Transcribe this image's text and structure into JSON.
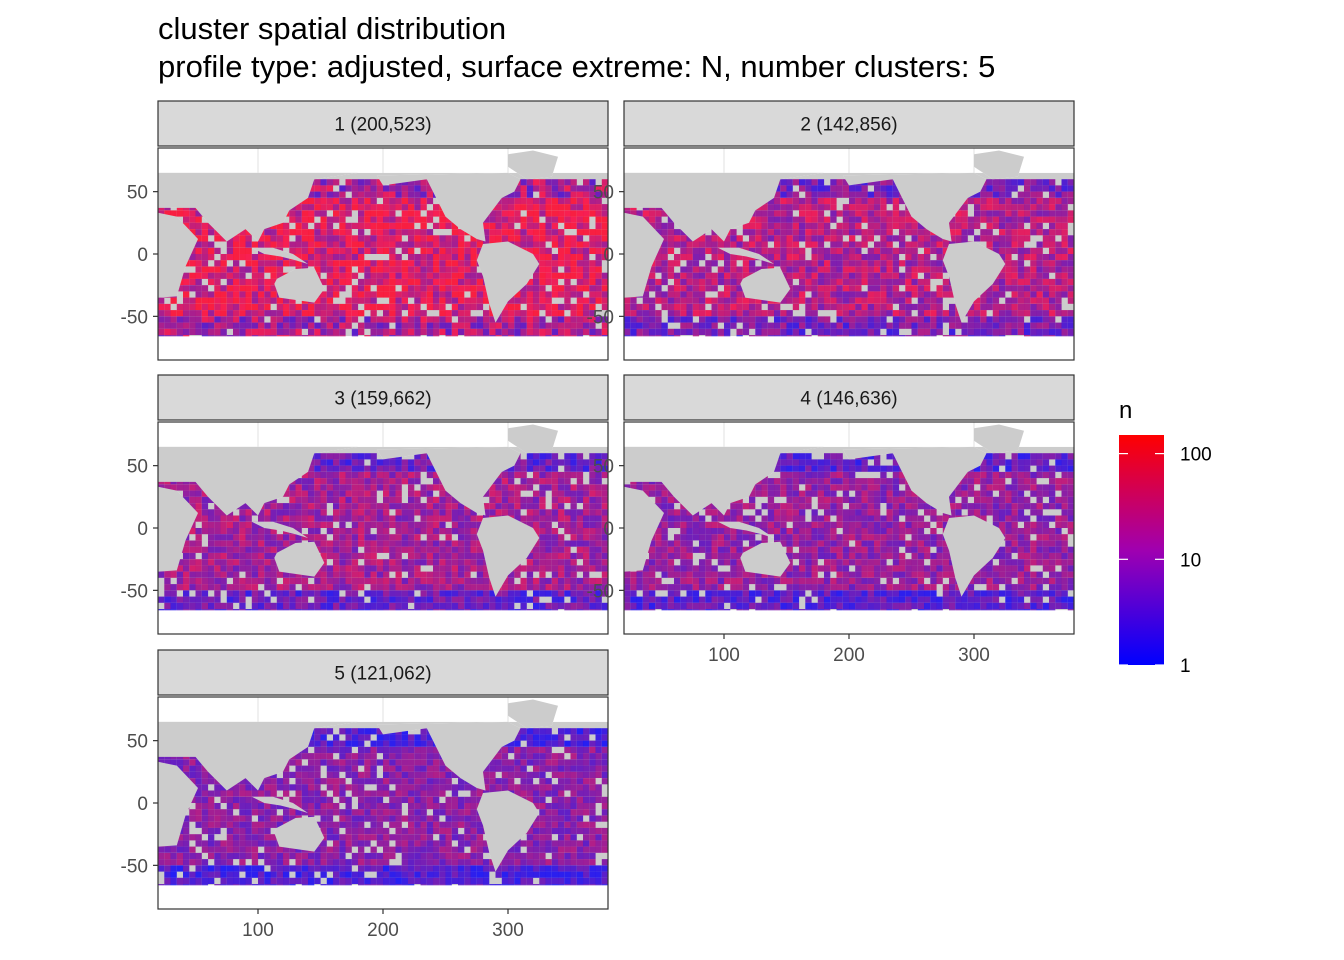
{
  "title": "cluster spatial distribution",
  "subtitle": "profile type: adjusted, surface extreme: N, number clusters: 5",
  "chart_data": {
    "type": "heatmap",
    "facet_variable": "cluster",
    "facets": [
      {
        "label": "1 (200,523)",
        "cluster": 1,
        "count": 200523,
        "intensity": 0.82
      },
      {
        "label": "2 (142,856)",
        "cluster": 2,
        "count": 142856,
        "intensity": 0.62
      },
      {
        "label": "3 (159,662)",
        "cluster": 3,
        "count": 159662,
        "intensity": 0.55
      },
      {
        "label": "4 (146,636)",
        "cluster": 4,
        "count": 146636,
        "intensity": 0.5
      },
      {
        "label": "5 (121,062)",
        "cluster": 5,
        "count": 121062,
        "intensity": 0.45
      }
    ],
    "xlabel": "",
    "ylabel": "",
    "xlim": [
      20,
      380
    ],
    "ylim": [
      -85,
      85
    ],
    "x_ticks": [
      100,
      200,
      300
    ],
    "x_tick_labels": [
      "100",
      "200",
      "300"
    ],
    "y_ticks": [
      50,
      0,
      -50
    ],
    "y_tick_labels": [
      "50",
      "0",
      "-50"
    ],
    "fill": {
      "name": "n",
      "scale": "log10",
      "range": [
        1,
        150
      ],
      "breaks": [
        1,
        10,
        100
      ],
      "break_labels": [
        "1",
        "10",
        "100"
      ],
      "low_color": "#0000ff",
      "high_color": "#ff0000"
    },
    "grid": true,
    "legend_position": "right",
    "land_color": "#cccccc",
    "strip_color": "#d9d9d9"
  }
}
